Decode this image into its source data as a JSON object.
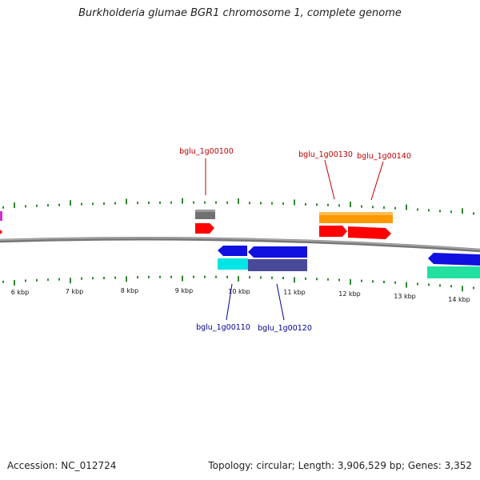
{
  "title": "Burkholderia glumae BGR1 chromosome 1, complete genome",
  "accession_label": "Accession: NC_012724",
  "summary_label": "Topology: circular; Length: 3,906,529 bp; Genes: 3,352",
  "scale_labels": [
    "6 kbp",
    "7 kbp",
    "8 kbp",
    "9 kbp",
    "10 kbp",
    "11 kbp",
    "12 kbp",
    "13 kbp",
    "14 kbp"
  ],
  "gene_labels": {
    "g100": "bglu_1g00100",
    "g110": "bglu_1g00110",
    "g120": "bglu_1g00120",
    "g130": "bglu_1g00130",
    "g140": "bglu_1g00140"
  },
  "colors": {
    "backbone": "#8a8a8a",
    "tick": "#2e8b2e",
    "forward_cds": "#ff0000",
    "reverse_cds": "#1010e0",
    "top_gray": "#707070",
    "top_orange": "#ff9900",
    "bottom_cyan": "#00e5e5",
    "bottom_slate": "#4a4a9a",
    "bottom_teal": "#22e0a0",
    "label_top": "#c00000",
    "label_bottom": "#000099"
  }
}
